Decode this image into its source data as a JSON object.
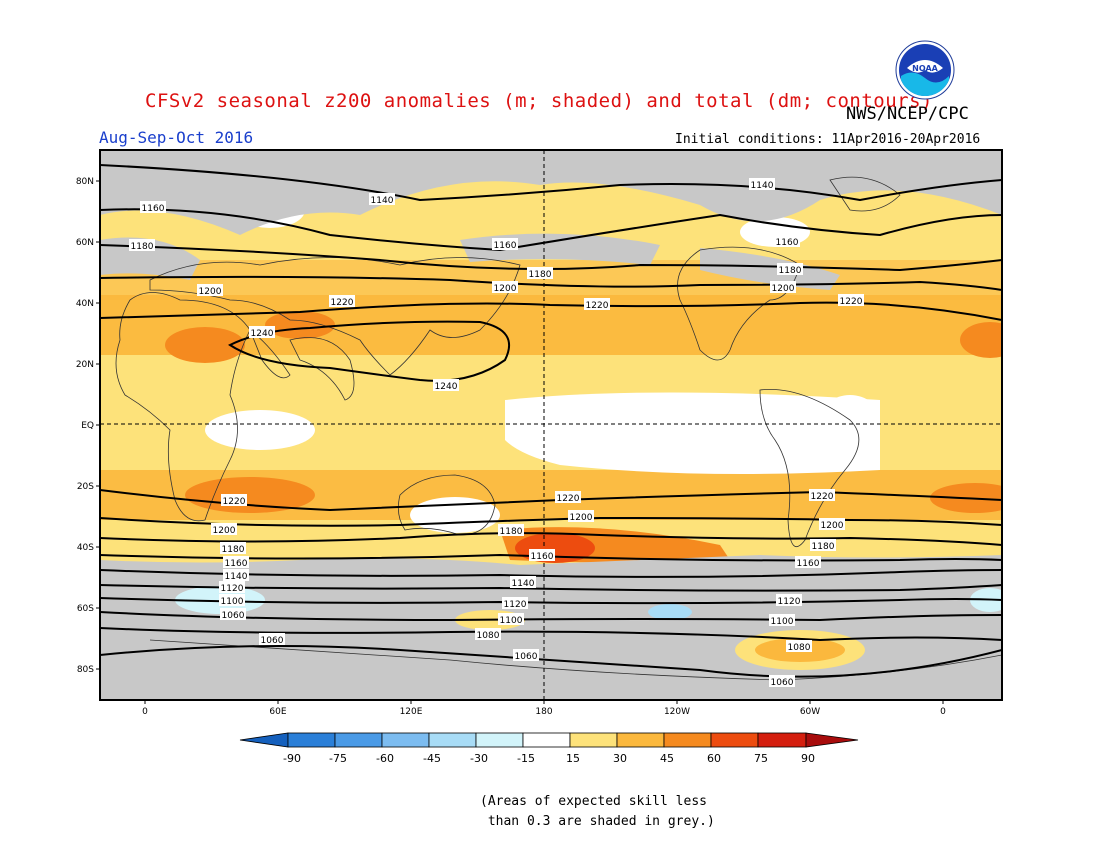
{
  "title": "CFSv2 seasonal z200 anomalies (m; shaded) and total (dm; contours)",
  "organization": "NWS/NCEP/CPC",
  "logo_text": "NOAA",
  "season": "Aug-Sep-Oct 2016",
  "initial_conditions": "Initial conditions: 11Apr2016-20Apr2016",
  "latitude_labels": [
    "80N",
    "60N",
    "40N",
    "20N",
    "EQ",
    "20S",
    "40S",
    "60S",
    "80S"
  ],
  "longitude_labels": [
    "0",
    "60E",
    "120E",
    "180",
    "120W",
    "60W",
    "0"
  ],
  "colorbar": {
    "ticks": [
      "-90",
      "-75",
      "-60",
      "-45",
      "-30",
      "-15",
      "15",
      "30",
      "45",
      "60",
      "75",
      "90"
    ],
    "colors": [
      "#1560bd",
      "#2a7fd8",
      "#4a9ae6",
      "#7cbcf0",
      "#a8dcf6",
      "#d2f4fa",
      "#ffffff",
      "#fde27a",
      "#fbb83d",
      "#f58a1f",
      "#ed4c0f",
      "#d41e0e",
      "#a80c0c"
    ]
  },
  "contour_labels": {
    "nh": [
      "1140",
      "1160",
      "1160",
      "1180",
      "1180",
      "1180",
      "1200",
      "1200",
      "1200",
      "1220",
      "1220",
      "1220",
      "1240",
      "1240"
    ],
    "sh": [
      "1220",
      "1220",
      "1220",
      "1200",
      "1200",
      "1200",
      "1180",
      "1180",
      "1180",
      "1160",
      "1160",
      "1160",
      "1140",
      "1140",
      "1120",
      "1120",
      "1120",
      "1100",
      "1100",
      "1100",
      "1080",
      "1080",
      "1060",
      "1060",
      "1060",
      "1060"
    ]
  },
  "note": "(Areas of expected skill less\n than 0.3 are shaded in grey.)"
}
